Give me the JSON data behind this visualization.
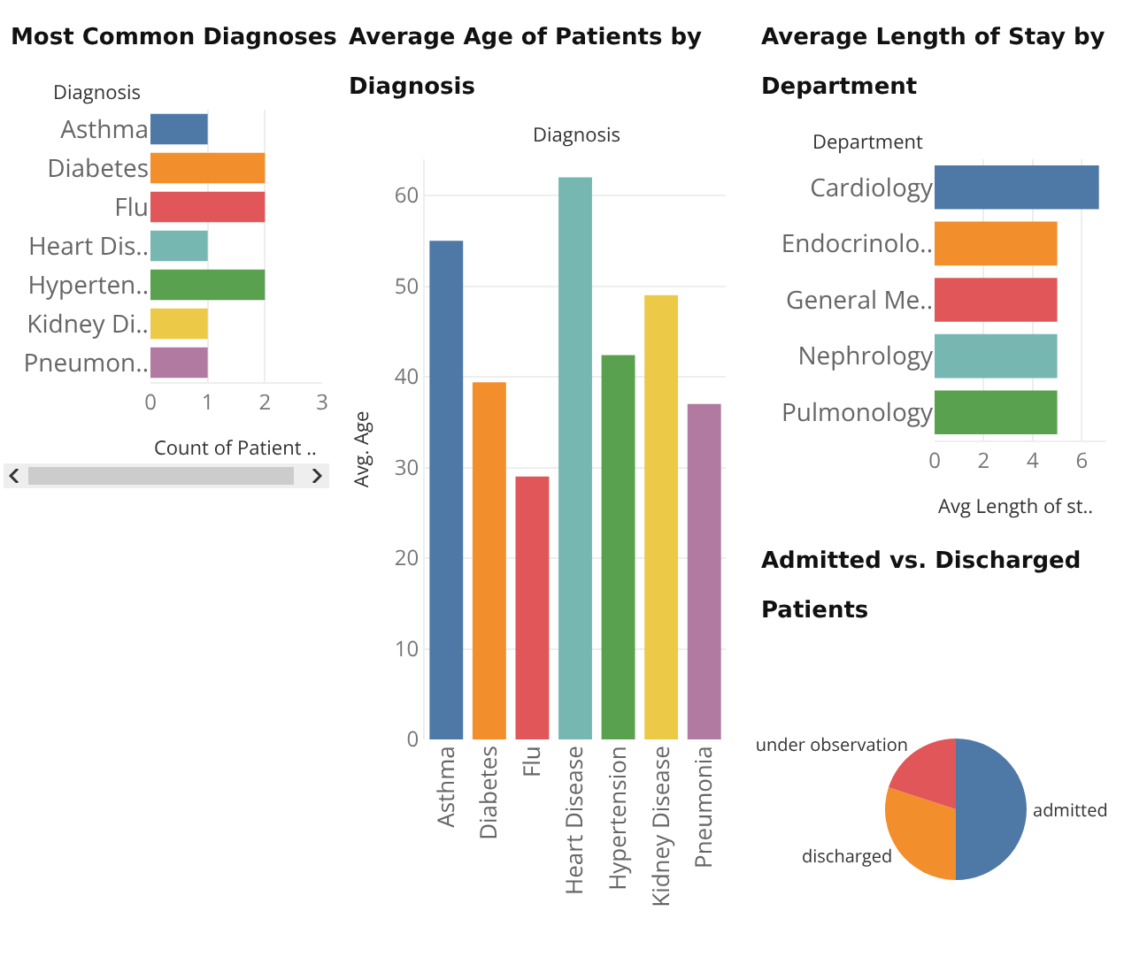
{
  "chart_data": [
    {
      "type": "bar",
      "orientation": "horizontal",
      "title": "Most Common Diagnoses",
      "ylabel": "Diagnosis",
      "xlabel": "Count of Patient ..",
      "categories": [
        "Asthma",
        "Diabetes",
        "Flu",
        "Heart Dis..",
        "Hyperten..",
        "Kidney Di..",
        "Pneumon.."
      ],
      "values": [
        1,
        2,
        2,
        1,
        2,
        1,
        1
      ],
      "colors": [
        "#4e79a7",
        "#f28e2b",
        "#e15759",
        "#76b7b2",
        "#59a14f",
        "#edc948",
        "#b07aa1"
      ],
      "xlim": [
        0,
        3
      ],
      "xticks": [
        0,
        1,
        2,
        3
      ],
      "grid": "x",
      "legend": false
    },
    {
      "type": "bar",
      "title": "Average Age of Patients by Diagnosis",
      "xlabel": "Diagnosis",
      "ylabel": "Avg. Age",
      "categories": [
        "Asthma",
        "Diabetes",
        "Flu",
        "Heart Disease",
        "Hypertension",
        "Kidney Disease",
        "Pneumonia"
      ],
      "values": [
        55,
        39.4,
        29,
        62,
        42.4,
        49,
        37
      ],
      "colors": [
        "#4e79a7",
        "#f28e2b",
        "#e15759",
        "#76b7b2",
        "#59a14f",
        "#edc948",
        "#b07aa1"
      ],
      "ylim": [
        0,
        64
      ],
      "yticks": [
        0,
        10,
        20,
        30,
        40,
        50,
        60
      ],
      "grid": "y",
      "legend": false
    },
    {
      "type": "bar",
      "orientation": "horizontal",
      "title": "Average Length of Stay by Department",
      "ylabel": "Department",
      "xlabel": "Avg Length of st..",
      "categories": [
        "Cardiology",
        "Endocrinolo..",
        "General Me..",
        "Nephrology",
        "Pulmonology"
      ],
      "values": [
        6.7,
        5,
        5,
        5,
        5
      ],
      "colors": [
        "#4e79a7",
        "#f28e2b",
        "#e15759",
        "#76b7b2",
        "#59a14f"
      ],
      "xlim": [
        0,
        7
      ],
      "xticks": [
        0,
        2,
        4,
        6
      ],
      "grid": "x",
      "legend": false
    },
    {
      "type": "pie",
      "title": "Admitted vs. Discharged Patients",
      "categories": [
        "admitted",
        "discharged",
        "under observation"
      ],
      "values": [
        50,
        30,
        20
      ],
      "colors": [
        "#4e79a7",
        "#f28e2b",
        "#e15759"
      ],
      "legend": false
    }
  ]
}
